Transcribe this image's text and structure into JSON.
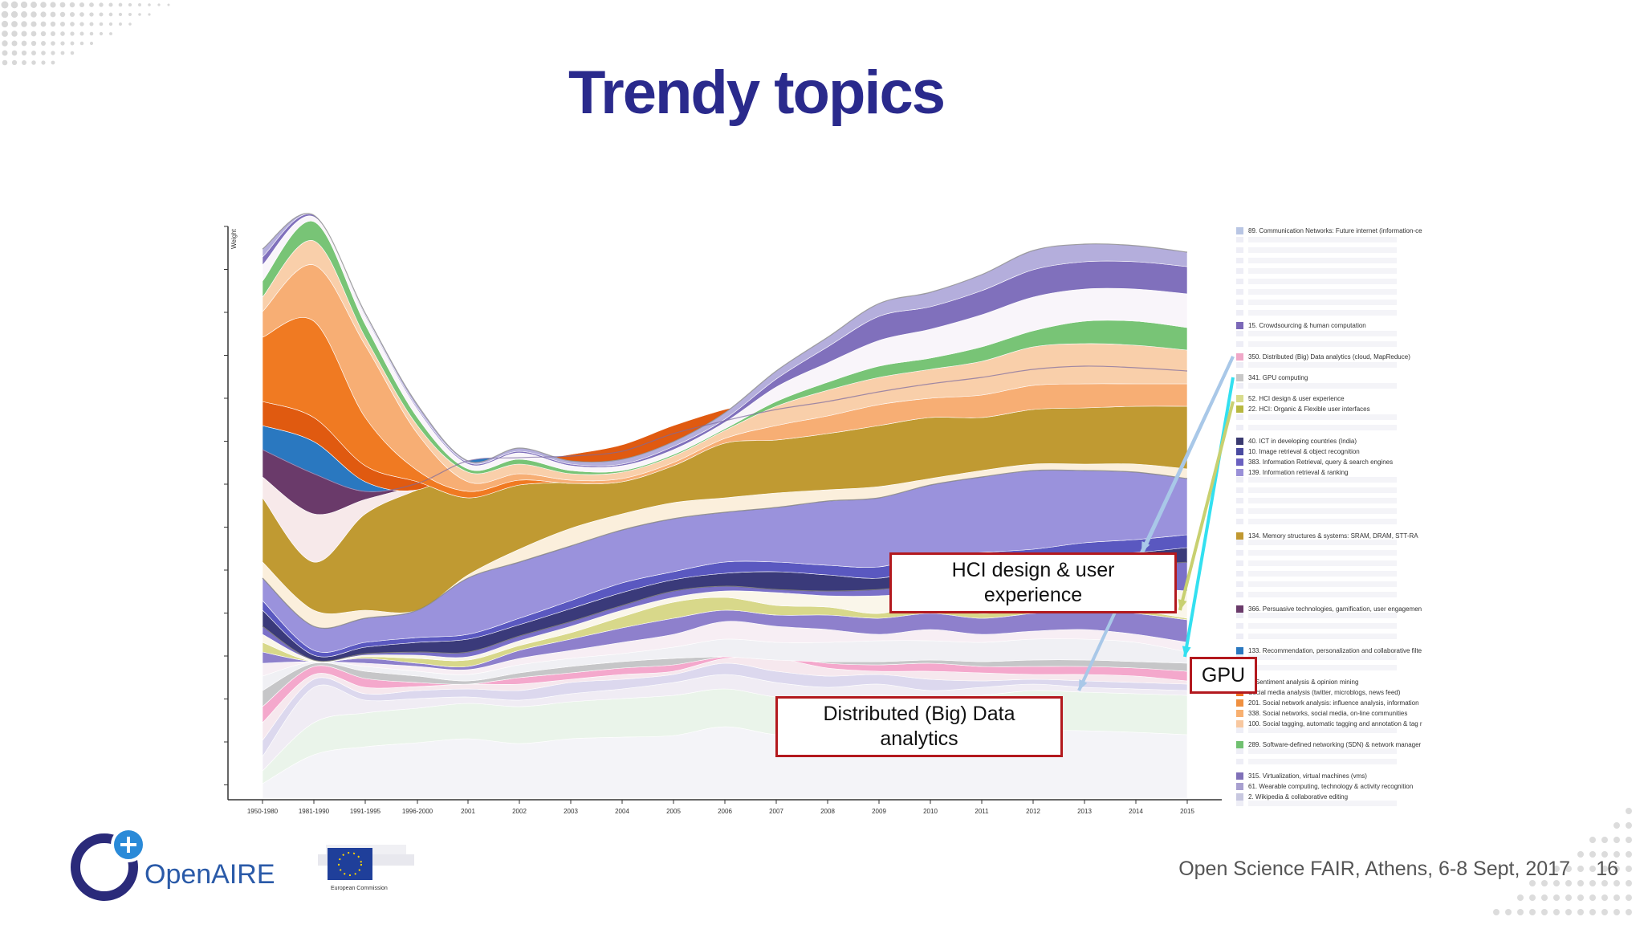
{
  "slide": {
    "title": "Trendy topics",
    "footer": "Open Science FAIR, Athens, 6-8 Sept, 2017",
    "page_number": "16",
    "logo_text": "OpenAIRE",
    "eu_text": "European Commission"
  },
  "callouts": {
    "hci": "HCI design & user experience",
    "gpu": "GPU",
    "big_data": "Distributed (Big) Data analytics"
  },
  "colors": {
    "title": "#2a2a8c",
    "callout_border": "#b3191e",
    "arrow_blue": "#a9c8e8",
    "arrow_cyan": "#33e0f0"
  },
  "chart_data": {
    "type": "area",
    "ylabel": "Weight",
    "categories": [
      "1950-1980",
      "1981-1990",
      "1991-1995",
      "1996-2000",
      "2001",
      "2002",
      "2003",
      "2004",
      "2005",
      "2006",
      "2007",
      "2008",
      "2009",
      "2010",
      "2011",
      "2012",
      "2013",
      "2014",
      "2015"
    ],
    "legend": [
      {
        "label": "89. Communication Networks: Future internet (information-ce",
        "color": "#b9c6e4"
      },
      {
        "label": "15. Crowdsourcing & human computation",
        "color": "#7b68b8"
      },
      {
        "label": "350. Distributed (Big) Data analytics (cloud, MapReduce)",
        "color": "#f0a8c8"
      },
      {
        "label": "341. GPU computing",
        "color": "#c8c8c8"
      },
      {
        "label": "52. HCI design & user experience",
        "color": "#d8dc8c"
      },
      {
        "label": "22. HCI: Organic & Flexible user interfaces",
        "color": "#b8b840"
      },
      {
        "label": "40. ICT in developing countries (India)",
        "color": "#3a3a70"
      },
      {
        "label": "10. Image retrieval & object recognition",
        "color": "#4a4aa0"
      },
      {
        "label": "383. Information Retrieval, query & search engines",
        "color": "#6a60c0"
      },
      {
        "label": "139. Information retrieval & ranking",
        "color": "#9a90d8"
      },
      {
        "label": "134. Memory structures & systems: SRAM, DRAM, STT-RA",
        "color": "#c09830"
      },
      {
        "label": "366. Persuasive technologies, gamification, user engagemen",
        "color": "#6a3a6a"
      },
      {
        "label": "133. Recommendation, personalization and collaborative filte",
        "color": "#2a78c0"
      },
      {
        "label": "6. Sentiment analysis & opinion mining",
        "color": "#e06010"
      },
      {
        "label": "Social media analysis (twitter, microblogs, news feed)",
        "color": "#f07020"
      },
      {
        "label": "201. Social network analysis: influence analysis, information",
        "color": "#f09040"
      },
      {
        "label": "338. Social networks, social media, on-line communities",
        "color": "#f8b070"
      },
      {
        "label": "100. Social tagging, automatic tagging and annotation & tag r",
        "color": "#f8c8a0"
      },
      {
        "label": "289. Software-defined networking (SDN) & network manager",
        "color": "#70c070"
      },
      {
        "label": "315. Virtualization, virtual machines (vms)",
        "color": "#8070b8"
      },
      {
        "label": "61. Wearable computing, technology & activity recognition",
        "color": "#a8a0d0"
      },
      {
        "label": "2. Wikipedia & collaborative editing",
        "color": "#c8c8e0"
      }
    ]
  }
}
